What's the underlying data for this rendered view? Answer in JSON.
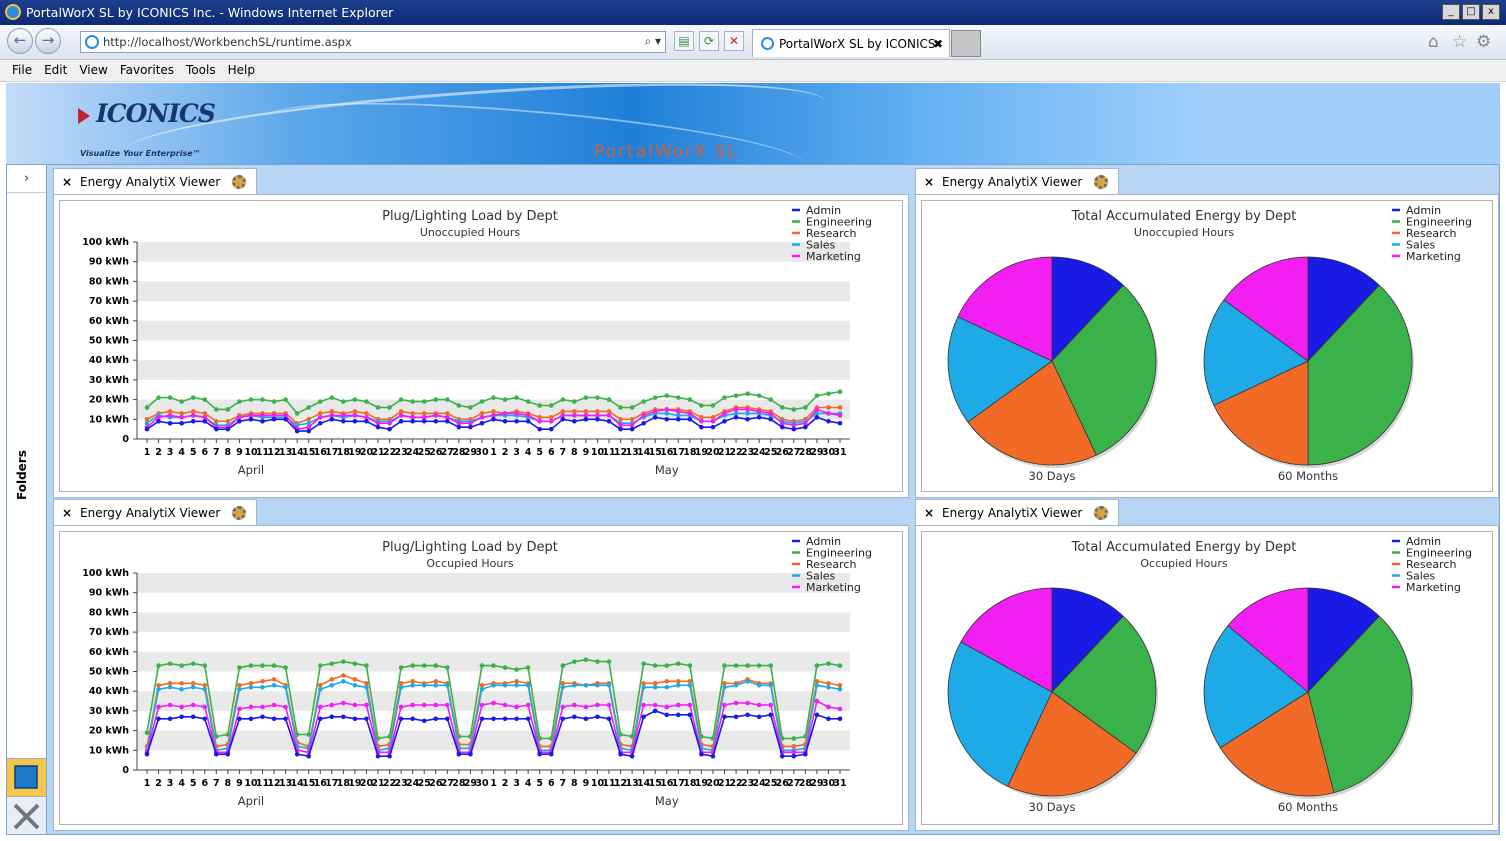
{
  "window": {
    "title": "PortalWorX SL by ICONICS Inc. - Windows Internet Explorer",
    "min": "_",
    "max": "□",
    "close": "x"
  },
  "browser": {
    "back": "←",
    "forward": "→",
    "url": "http://localhost/WorkbenchSL/runtime.aspx",
    "go_icons": "⌕ ▾",
    "compat_icon": "▤",
    "refresh_icon": "⟳",
    "stop_icon": "✕",
    "tab_title": "PortalWorX SL by ICONICS Inc.",
    "tab_close": "✖",
    "home_icon": "⌂",
    "favorites_icon": "☆",
    "tools_icon": "⚙"
  },
  "menu": [
    "File",
    "Edit",
    "View",
    "Favorites",
    "Tools",
    "Help"
  ],
  "banner": {
    "logo": "ICONICS",
    "tagline": "Visualize Your Enterprise™",
    "product": "PortalWorX SL"
  },
  "sidebar": {
    "expand": "›",
    "label": "Folders"
  },
  "panels": [
    {
      "tab_title": "Energy AnalytiX Viewer",
      "close": "×"
    },
    {
      "tab_title": "Energy AnalytiX Viewer",
      "close": "×"
    },
    {
      "tab_title": "Energy AnalytiX Viewer",
      "close": "×"
    },
    {
      "tab_title": "Energy AnalytiX Viewer",
      "close": "×"
    }
  ],
  "colors": {
    "Admin": "#1a1ae6",
    "Engineering": "#3bb14a",
    "Research": "#f26b26",
    "Sales": "#1eaae6",
    "Marketing": "#f21ef2"
  },
  "chart_data": [
    {
      "type": "line",
      "title": "Plug/Lighting Load by Dept",
      "subtitle": "Unoccupied Hours",
      "ylim": [
        0,
        100
      ],
      "yticks": [
        "0",
        "10 kWh",
        "20 kWh",
        "30 kWh",
        "40 kWh",
        "50 kWh",
        "60 kWh",
        "70 kWh",
        "80 kWh",
        "90 kWh",
        "100 kWh"
      ],
      "x": [
        "1",
        "2",
        "3",
        "4",
        "5",
        "6",
        "7",
        "8",
        "9",
        "10",
        "11",
        "12",
        "13",
        "14",
        "15",
        "16",
        "17",
        "18",
        "19",
        "20",
        "21",
        "22",
        "23",
        "24",
        "25",
        "26",
        "27",
        "28",
        "29",
        "30",
        "1",
        "2",
        "3",
        "4",
        "5",
        "6",
        "7",
        "8",
        "9",
        "10",
        "11",
        "12",
        "13",
        "14",
        "15",
        "16",
        "17",
        "18",
        "19",
        "20",
        "21",
        "22",
        "23",
        "24",
        "25",
        "26",
        "27",
        "28",
        "29",
        "30",
        "31"
      ],
      "month_labels": [
        "April",
        "May"
      ],
      "legend": [
        "Admin",
        "Engineering",
        "Research",
        "Sales",
        "Marketing"
      ],
      "series": [
        {
          "name": "Engineering",
          "values": [
            16,
            21,
            21,
            19,
            21,
            20,
            15,
            15,
            19,
            20,
            20,
            19,
            20,
            13,
            16,
            19,
            21,
            19,
            20,
            19,
            16,
            16,
            20,
            19,
            19,
            20,
            20,
            17,
            16,
            19,
            21,
            20,
            21,
            19,
            17,
            17,
            20,
            19,
            21,
            21,
            20,
            16,
            16,
            19,
            21,
            22,
            21,
            20,
            17,
            17,
            21,
            22,
            23,
            22,
            20,
            16,
            15,
            16,
            22,
            23,
            24
          ]
        },
        {
          "name": "Research",
          "values": [
            10,
            13,
            14,
            13,
            14,
            13,
            9,
            9,
            12,
            13,
            13,
            13,
            13,
            8,
            10,
            13,
            14,
            13,
            14,
            13,
            10,
            10,
            14,
            13,
            13,
            13,
            13,
            10,
            10,
            13,
            14,
            13,
            14,
            13,
            11,
            11,
            14,
            14,
            14,
            14,
            14,
            10,
            10,
            13,
            15,
            15,
            15,
            14,
            11,
            11,
            14,
            16,
            16,
            15,
            14,
            10,
            9,
            10,
            16,
            16,
            16
          ]
        },
        {
          "name": "Sales",
          "values": [
            8,
            12,
            11,
            11,
            12,
            11,
            7,
            7,
            11,
            12,
            11,
            11,
            11,
            7,
            8,
            11,
            12,
            11,
            12,
            11,
            9,
            9,
            12,
            11,
            11,
            12,
            11,
            9,
            9,
            11,
            12,
            12,
            12,
            11,
            9,
            9,
            12,
            12,
            12,
            12,
            12,
            8,
            8,
            11,
            13,
            13,
            12,
            12,
            9,
            9,
            12,
            13,
            13,
            13,
            12,
            9,
            8,
            9,
            13,
            13,
            13
          ]
        },
        {
          "name": "Marketing",
          "values": [
            6,
            11,
            12,
            11,
            12,
            11,
            6,
            6,
            11,
            12,
            12,
            12,
            12,
            5,
            6,
            11,
            12,
            12,
            12,
            11,
            8,
            8,
            12,
            11,
            11,
            12,
            11,
            8,
            8,
            11,
            12,
            13,
            13,
            12,
            9,
            9,
            12,
            12,
            12,
            12,
            12,
            7,
            7,
            12,
            14,
            15,
            14,
            13,
            9,
            9,
            13,
            15,
            15,
            14,
            13,
            8,
            7,
            8,
            15,
            13,
            12
          ]
        },
        {
          "name": "Admin",
          "values": [
            5,
            9,
            8,
            8,
            9,
            9,
            5,
            5,
            9,
            10,
            9,
            10,
            10,
            4,
            4,
            8,
            10,
            9,
            9,
            9,
            6,
            5,
            9,
            9,
            9,
            9,
            9,
            6,
            6,
            8,
            10,
            9,
            9,
            9,
            5,
            5,
            10,
            9,
            10,
            10,
            9,
            5,
            5,
            8,
            11,
            10,
            10,
            10,
            6,
            6,
            9,
            11,
            10,
            11,
            10,
            6,
            5,
            6,
            11,
            9,
            8
          ]
        }
      ]
    },
    {
      "type": "pie",
      "title": "Total Accumulated Energy by Dept",
      "subtitle": "Unoccupied Hours",
      "legend": [
        "Admin",
        "Engineering",
        "Research",
        "Sales",
        "Marketing"
      ],
      "pies": [
        {
          "label": "30 Days",
          "values": [
            12,
            31,
            22,
            17,
            18
          ]
        },
        {
          "label": "60 Months",
          "values": [
            12,
            38,
            18,
            17,
            15
          ]
        }
      ]
    },
    {
      "type": "line",
      "title": "Plug/Lighting Load by Dept",
      "subtitle": "Occupied Hours",
      "ylim": [
        0,
        100
      ],
      "yticks": [
        "0",
        "10 kWh",
        "20 kWh",
        "30 kWh",
        "40 kWh",
        "50 kWh",
        "60 kWh",
        "70 kWh",
        "80 kWh",
        "90 kWh",
        "100 kWh"
      ],
      "x": [
        "1",
        "2",
        "3",
        "4",
        "5",
        "6",
        "7",
        "8",
        "9",
        "10",
        "11",
        "12",
        "13",
        "14",
        "15",
        "16",
        "17",
        "18",
        "19",
        "20",
        "21",
        "22",
        "23",
        "24",
        "25",
        "26",
        "27",
        "28",
        "29",
        "30",
        "1",
        "2",
        "3",
        "4",
        "5",
        "6",
        "7",
        "8",
        "9",
        "10",
        "11",
        "12",
        "13",
        "14",
        "15",
        "16",
        "17",
        "18",
        "19",
        "20",
        "21",
        "22",
        "23",
        "24",
        "25",
        "26",
        "27",
        "28",
        "29",
        "30",
        "31"
      ],
      "month_labels": [
        "April",
        "May"
      ],
      "legend": [
        "Admin",
        "Engineering",
        "Research",
        "Sales",
        "Marketing"
      ],
      "series": [
        {
          "name": "Engineering",
          "values": [
            19,
            53,
            54,
            53,
            54,
            53,
            17,
            18,
            52,
            53,
            53,
            53,
            52,
            18,
            18,
            53,
            54,
            55,
            54,
            53,
            16,
            17,
            52,
            53,
            53,
            53,
            52,
            17,
            17,
            53,
            53,
            52,
            51,
            52,
            16,
            16,
            53,
            55,
            56,
            55,
            55,
            18,
            17,
            54,
            53,
            53,
            54,
            53,
            17,
            16,
            53,
            53,
            53,
            53,
            53,
            16,
            16,
            17,
            53,
            54,
            53
          ]
        },
        {
          "name": "Research",
          "values": [
            12,
            43,
            44,
            44,
            44,
            43,
            12,
            13,
            43,
            44,
            45,
            46,
            43,
            14,
            12,
            43,
            46,
            48,
            46,
            44,
            12,
            13,
            44,
            45,
            44,
            45,
            44,
            13,
            13,
            43,
            44,
            44,
            45,
            44,
            12,
            12,
            44,
            44,
            43,
            44,
            44,
            13,
            12,
            44,
            44,
            45,
            45,
            45,
            13,
            12,
            44,
            44,
            46,
            44,
            44,
            12,
            12,
            13,
            45,
            44,
            43
          ]
        },
        {
          "name": "Sales",
          "values": [
            10,
            41,
            42,
            41,
            42,
            41,
            10,
            11,
            41,
            42,
            42,
            43,
            42,
            12,
            11,
            41,
            43,
            45,
            43,
            42,
            10,
            11,
            42,
            43,
            43,
            43,
            43,
            11,
            11,
            41,
            43,
            43,
            43,
            43,
            10,
            10,
            42,
            43,
            43,
            43,
            43,
            11,
            10,
            42,
            42,
            42,
            43,
            43,
            11,
            10,
            42,
            43,
            45,
            43,
            43,
            10,
            10,
            11,
            43,
            42,
            41
          ]
        },
        {
          "name": "Marketing",
          "values": [
            9,
            32,
            33,
            32,
            33,
            32,
            9,
            9,
            31,
            32,
            32,
            33,
            32,
            10,
            9,
            32,
            33,
            34,
            33,
            33,
            9,
            9,
            32,
            33,
            33,
            33,
            33,
            9,
            9,
            33,
            34,
            33,
            32,
            33,
            9,
            9,
            32,
            33,
            32,
            33,
            33,
            9,
            9,
            33,
            33,
            32,
            33,
            33,
            9,
            9,
            33,
            34,
            34,
            33,
            33,
            9,
            9,
            9,
            35,
            32,
            31
          ]
        },
        {
          "name": "Admin",
          "values": [
            8,
            26,
            26,
            27,
            27,
            26,
            8,
            8,
            26,
            26,
            27,
            26,
            26,
            8,
            7,
            26,
            27,
            27,
            26,
            26,
            7,
            7,
            26,
            26,
            25,
            26,
            26,
            8,
            8,
            26,
            26,
            26,
            26,
            26,
            8,
            8,
            26,
            27,
            26,
            27,
            26,
            8,
            7,
            27,
            30,
            28,
            28,
            28,
            8,
            7,
            27,
            27,
            28,
            27,
            28,
            7,
            7,
            8,
            28,
            26,
            26
          ]
        }
      ]
    },
    {
      "type": "pie",
      "title": "Total Accumulated Energy by Dept",
      "subtitle": "Occupied Hours",
      "legend": [
        "Admin",
        "Engineering",
        "Research",
        "Sales",
        "Marketing"
      ],
      "pies": [
        {
          "label": "30 Days",
          "values": [
            12,
            23,
            22,
            26,
            17
          ]
        },
        {
          "label": "60 Months",
          "values": [
            12,
            34,
            20,
            20,
            14
          ]
        }
      ]
    }
  ]
}
